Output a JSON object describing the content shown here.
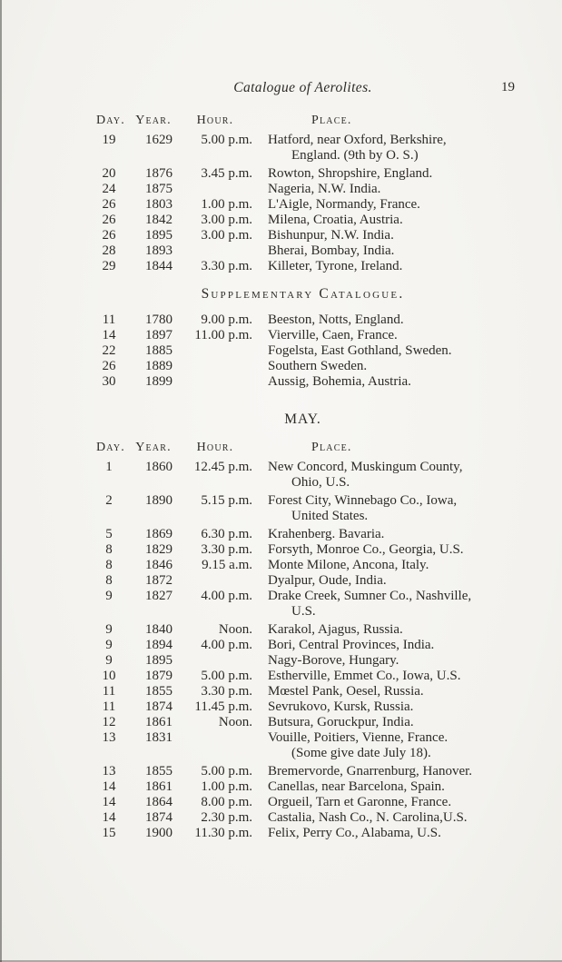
{
  "header": {
    "title": "Catalogue of Aerolites.",
    "page_number": "19"
  },
  "column_headers": {
    "day": "Day.",
    "year": "Year.",
    "hour": "Hour.",
    "place": "Place."
  },
  "sections": [
    {
      "heading": "",
      "heading_style": "none",
      "show_column_headers": true,
      "rows": [
        {
          "day": "19",
          "year": "1629",
          "hour": "5.00 p.m.",
          "place": [
            "Hatford, near Oxford, Berkshire,",
            "England.  (9th by O. S.)"
          ]
        },
        {
          "day": "20",
          "year": "1876",
          "hour": "3.45 p.m.",
          "place": [
            "Rowton, Shropshire, England."
          ]
        },
        {
          "day": "24",
          "year": "1875",
          "hour": "",
          "place": [
            "Nageria, N.W. India."
          ]
        },
        {
          "day": "26",
          "year": "1803",
          "hour": "1.00 p.m.",
          "place": [
            "L'Aigle, Normandy, France."
          ]
        },
        {
          "day": "26",
          "year": "1842",
          "hour": "3.00 p.m.",
          "place": [
            "Milena, Croatia, Austria."
          ]
        },
        {
          "day": "26",
          "year": "1895",
          "hour": "3.00 p.m.",
          "place": [
            "Bishunpur, N.W. India."
          ]
        },
        {
          "day": "28",
          "year": "1893",
          "hour": "",
          "place": [
            "Bherai, Bombay, India."
          ]
        },
        {
          "day": "29",
          "year": "1844",
          "hour": "3.30 p.m.",
          "place": [
            "Killeter, Tyrone, Ireland."
          ]
        }
      ]
    },
    {
      "heading": "Supplementary Catalogue.",
      "heading_style": "smallcaps",
      "show_column_headers": false,
      "rows": [
        {
          "day": "11",
          "year": "1780",
          "hour": "9.00 p.m.",
          "place": [
            "Beeston, Notts, England."
          ]
        },
        {
          "day": "14",
          "year": "1897",
          "hour": "11.00 p.m.",
          "place": [
            "Vierville, Caen, France."
          ]
        },
        {
          "day": "22",
          "year": "1885",
          "hour": "",
          "place": [
            "Fogelsta, East Gothland, Sweden."
          ]
        },
        {
          "day": "26",
          "year": "1889",
          "hour": "",
          "place": [
            "Southern Sweden."
          ]
        },
        {
          "day": "30",
          "year": "1899",
          "hour": "",
          "place": [
            "Aussig, Bohemia, Austria."
          ]
        }
      ]
    },
    {
      "heading": "MAY.",
      "heading_style": "caps",
      "show_column_headers": true,
      "rows": [
        {
          "day": "1",
          "year": "1860",
          "hour": "12.45 p.m.",
          "place": [
            "New Concord, Muskingum County,",
            "Ohio, U.S."
          ]
        },
        {
          "day": "2",
          "year": "1890",
          "hour": "5.15 p.m.",
          "place": [
            "Forest City, Winnebago Co., Iowa,",
            "United States."
          ]
        },
        {
          "day": "5",
          "year": "1869",
          "hour": "6.30 p.m.",
          "place": [
            "Krahenberg. Bavaria."
          ]
        },
        {
          "day": "8",
          "year": "1829",
          "hour": "3.30 p.m.",
          "place": [
            "Forsyth, Monroe Co., Georgia, U.S."
          ]
        },
        {
          "day": "8",
          "year": "1846",
          "hour": "9.15 a.m.",
          "place": [
            "Monte Milone, Ancona, Italy."
          ]
        },
        {
          "day": "8",
          "year": "1872",
          "hour": "",
          "place": [
            "Dyalpur, Oude, India."
          ]
        },
        {
          "day": "9",
          "year": "1827",
          "hour": "4.00 p.m.",
          "place": [
            "Drake Creek, Sumner Co., Nashville,",
            "U.S."
          ]
        },
        {
          "day": "9",
          "year": "1840",
          "hour": "Noon.",
          "place": [
            "Karakol, Ajagus, Russia."
          ]
        },
        {
          "day": "9",
          "year": "1894",
          "hour": "4.00 p.m.",
          "place": [
            "Bori, Central Provinces, India."
          ]
        },
        {
          "day": "9",
          "year": "1895",
          "hour": "",
          "place": [
            "Nagy-Borove, Hungary."
          ]
        },
        {
          "day": "10",
          "year": "1879",
          "hour": "5.00 p.m.",
          "place": [
            "Estherville, Emmet Co., Iowa, U.S."
          ]
        },
        {
          "day": "11",
          "year": "1855",
          "hour": "3.30 p.m.",
          "place": [
            "Mœstel Pank, Oesel, Russia."
          ]
        },
        {
          "day": "11",
          "year": "1874",
          "hour": "11.45 p.m.",
          "place": [
            "Sevrukovo, Kursk, Russia."
          ]
        },
        {
          "day": "12",
          "year": "1861",
          "hour": "Noon.",
          "place": [
            "Butsura, Goruckpur, India."
          ]
        },
        {
          "day": "13",
          "year": "1831",
          "hour": "",
          "place": [
            "Vouille, Poitiers, Vienne, France.",
            "(Some give date July 18)."
          ]
        },
        {
          "day": "13",
          "year": "1855",
          "hour": "5.00 p.m.",
          "place": [
            "Bremervorde, Gnarrenburg, Hanover."
          ]
        },
        {
          "day": "14",
          "year": "1861",
          "hour": "1.00 p.m.",
          "place": [
            "Canellas, near Barcelona, Spain."
          ]
        },
        {
          "day": "14",
          "year": "1864",
          "hour": "8.00 p.m.",
          "place": [
            "Orgueil, Tarn et Garonne, France."
          ]
        },
        {
          "day": "14",
          "year": "1874",
          "hour": "2.30 p.m.",
          "place": [
            "Castalia, Nash Co., N. Carolina,U.S."
          ]
        },
        {
          "day": "15",
          "year": "1900",
          "hour": "11.30 p.m.",
          "place": [
            "Felix, Perry Co., Alabama, U.S."
          ]
        }
      ]
    }
  ]
}
